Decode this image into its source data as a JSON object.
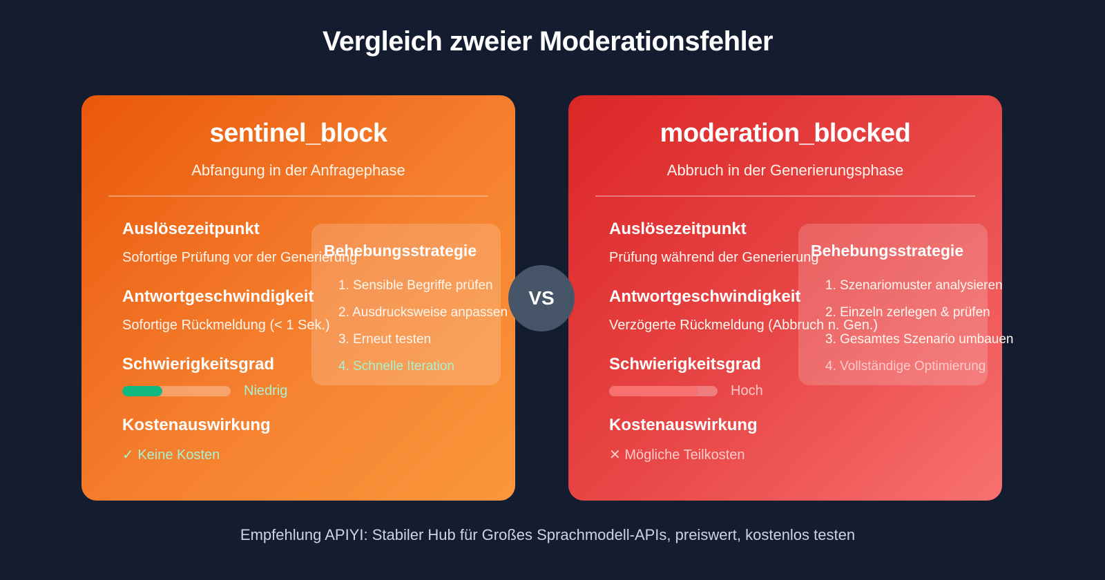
{
  "page": {
    "title": "Vergleich zweier Moderationsfehler",
    "vs_label": "VS",
    "footer": "Empfehlung APIYI: Stabiler Hub für Großes Sprachmodell-APIs, preiswert, kostenlos testen"
  },
  "colors": {
    "background": "#141c30",
    "left_card_gradient": [
      "#ea580c",
      "#fb973c"
    ],
    "right_card_gradient": [
      "#dc2626",
      "#f87171"
    ],
    "vs_circle": "#475569",
    "low_difficulty_fill": "#10b981",
    "positive_text": "#a7f3d0",
    "negative_text": "#fecaca"
  },
  "cards": [
    {
      "title": "sentinel_block",
      "subtitle": "Abfangung in der Anfragephase",
      "trigger": {
        "label": "Auslösezeitpunkt",
        "value": "Sofortige Prüfung vor der Generierung"
      },
      "speed": {
        "label": "Antwortgeschwindigkeit",
        "value": "Sofortige Rückmeldung (< 1 Sek.)"
      },
      "difficulty": {
        "label": "Schwierigkeitsgrad",
        "level": "Niedrig",
        "percent": 37,
        "fill_color": "#10b981",
        "text_color": "#a7f3d0"
      },
      "cost": {
        "label": "Kostenauswirkung",
        "icon": "✓",
        "value": "Keine Kosten",
        "text_color": "#a7f3d0"
      },
      "strategy": {
        "title": "Behebungsstrategie",
        "steps": [
          "1. Sensible Begriffe prüfen",
          "2. Ausdrucksweise anpassen",
          "3. Erneut testen",
          "4. Schnelle Iteration"
        ],
        "highlight_color": "#a7f3d0"
      }
    },
    {
      "title": "moderation_blocked",
      "subtitle": "Abbruch in der Generierungsphase",
      "trigger": {
        "label": "Auslösezeitpunkt",
        "value": "Prüfung während der Generierung"
      },
      "speed": {
        "label": "Antwortgeschwindigkeit",
        "value": "Verzögerte Rückmeldung (Abbruch n. Gen.)"
      },
      "difficulty": {
        "label": "Schwierigkeitsgrad",
        "level": "Hoch",
        "percent": 82,
        "fill_color": "#f87171",
        "text_color": "#fecaca"
      },
      "cost": {
        "label": "Kostenauswirkung",
        "icon": "✕",
        "value": "Mögliche Teilkosten",
        "text_color": "#fecaca"
      },
      "strategy": {
        "title": "Behebungsstrategie",
        "steps": [
          "1. Szenariomuster analysieren",
          "2. Einzeln zerlegen & prüfen",
          "3. Gesamtes Szenario umbauen",
          "4. Vollständige Optimierung"
        ],
        "highlight_color": "#fecaca"
      }
    }
  ]
}
